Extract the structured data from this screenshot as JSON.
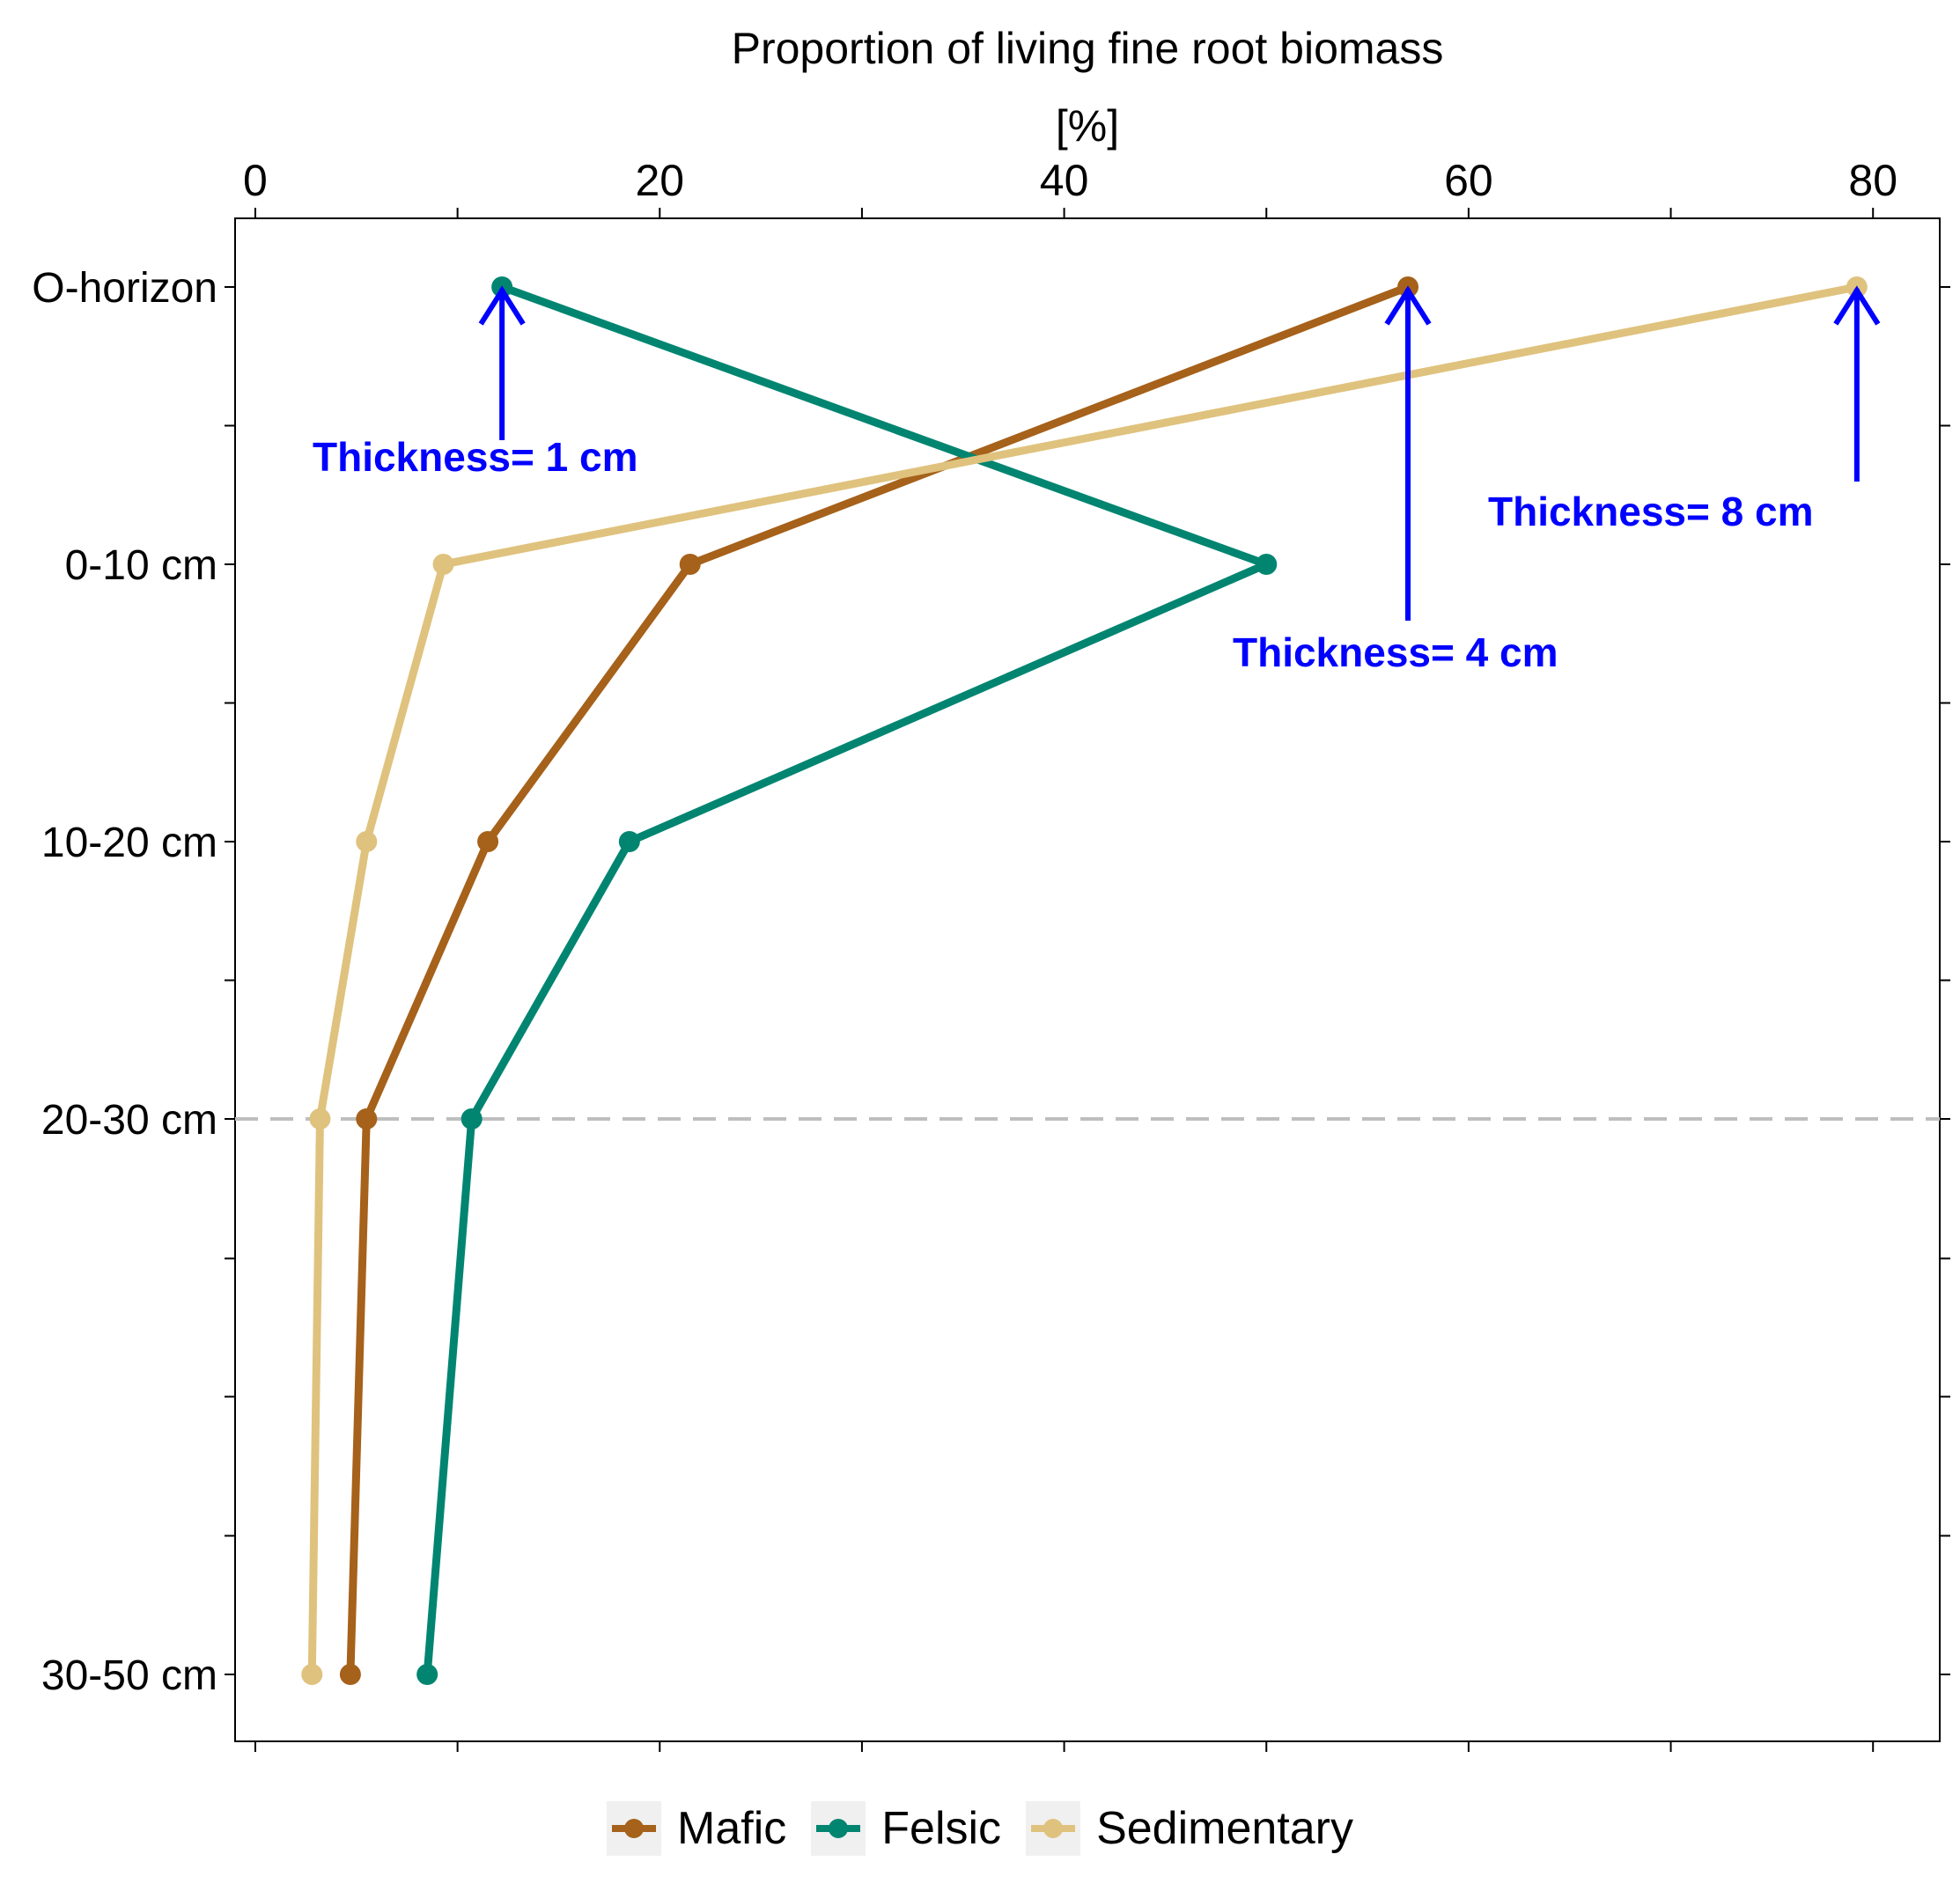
{
  "chart_data": {
    "type": "line",
    "title_lines": [
      "Proportion of living fine root biomass",
      "[%]"
    ],
    "x_axis": {
      "position": "top",
      "ticks": [
        0,
        20,
        40,
        60,
        80
      ],
      "range": [
        -1,
        83.3
      ]
    },
    "y_axis": {
      "categories": [
        "O-horizon",
        "0-10 cm",
        "10-20 cm",
        "20-30 cm",
        "30-50 cm"
      ],
      "reversed": true
    },
    "series": [
      {
        "name": "Mafic",
        "color": "#A6611A",
        "values": [
          57.0,
          21.5,
          11.5,
          5.5,
          4.7
        ]
      },
      {
        "name": "Felsic",
        "color": "#018571",
        "values": [
          12.2,
          50.0,
          18.5,
          10.7,
          8.5
        ]
      },
      {
        "name": "Sedimentary",
        "color": "#DFC27D",
        "values": [
          79.2,
          9.3,
          5.5,
          3.2,
          2.8
        ]
      }
    ],
    "reference_line": {
      "at_category": "20-30 cm",
      "style": "dashed",
      "color": "#BEBEBE"
    },
    "annotations": [
      {
        "text": "Thickness= 1 cm",
        "x": 12.2,
        "category": "O-horizon",
        "color": "#0000FF"
      },
      {
        "text": "Thickness= 4 cm",
        "x": 57.0,
        "category": "O-horizon",
        "color": "#0000FF"
      },
      {
        "text": "Thickness= 8 cm",
        "x": 79.2,
        "category": "O-horizon",
        "color": "#0000FF"
      }
    ],
    "legend": {
      "placement": "bottom",
      "entries": [
        "Mafic",
        "Felsic",
        "Sedimentary"
      ]
    },
    "grid": false
  }
}
